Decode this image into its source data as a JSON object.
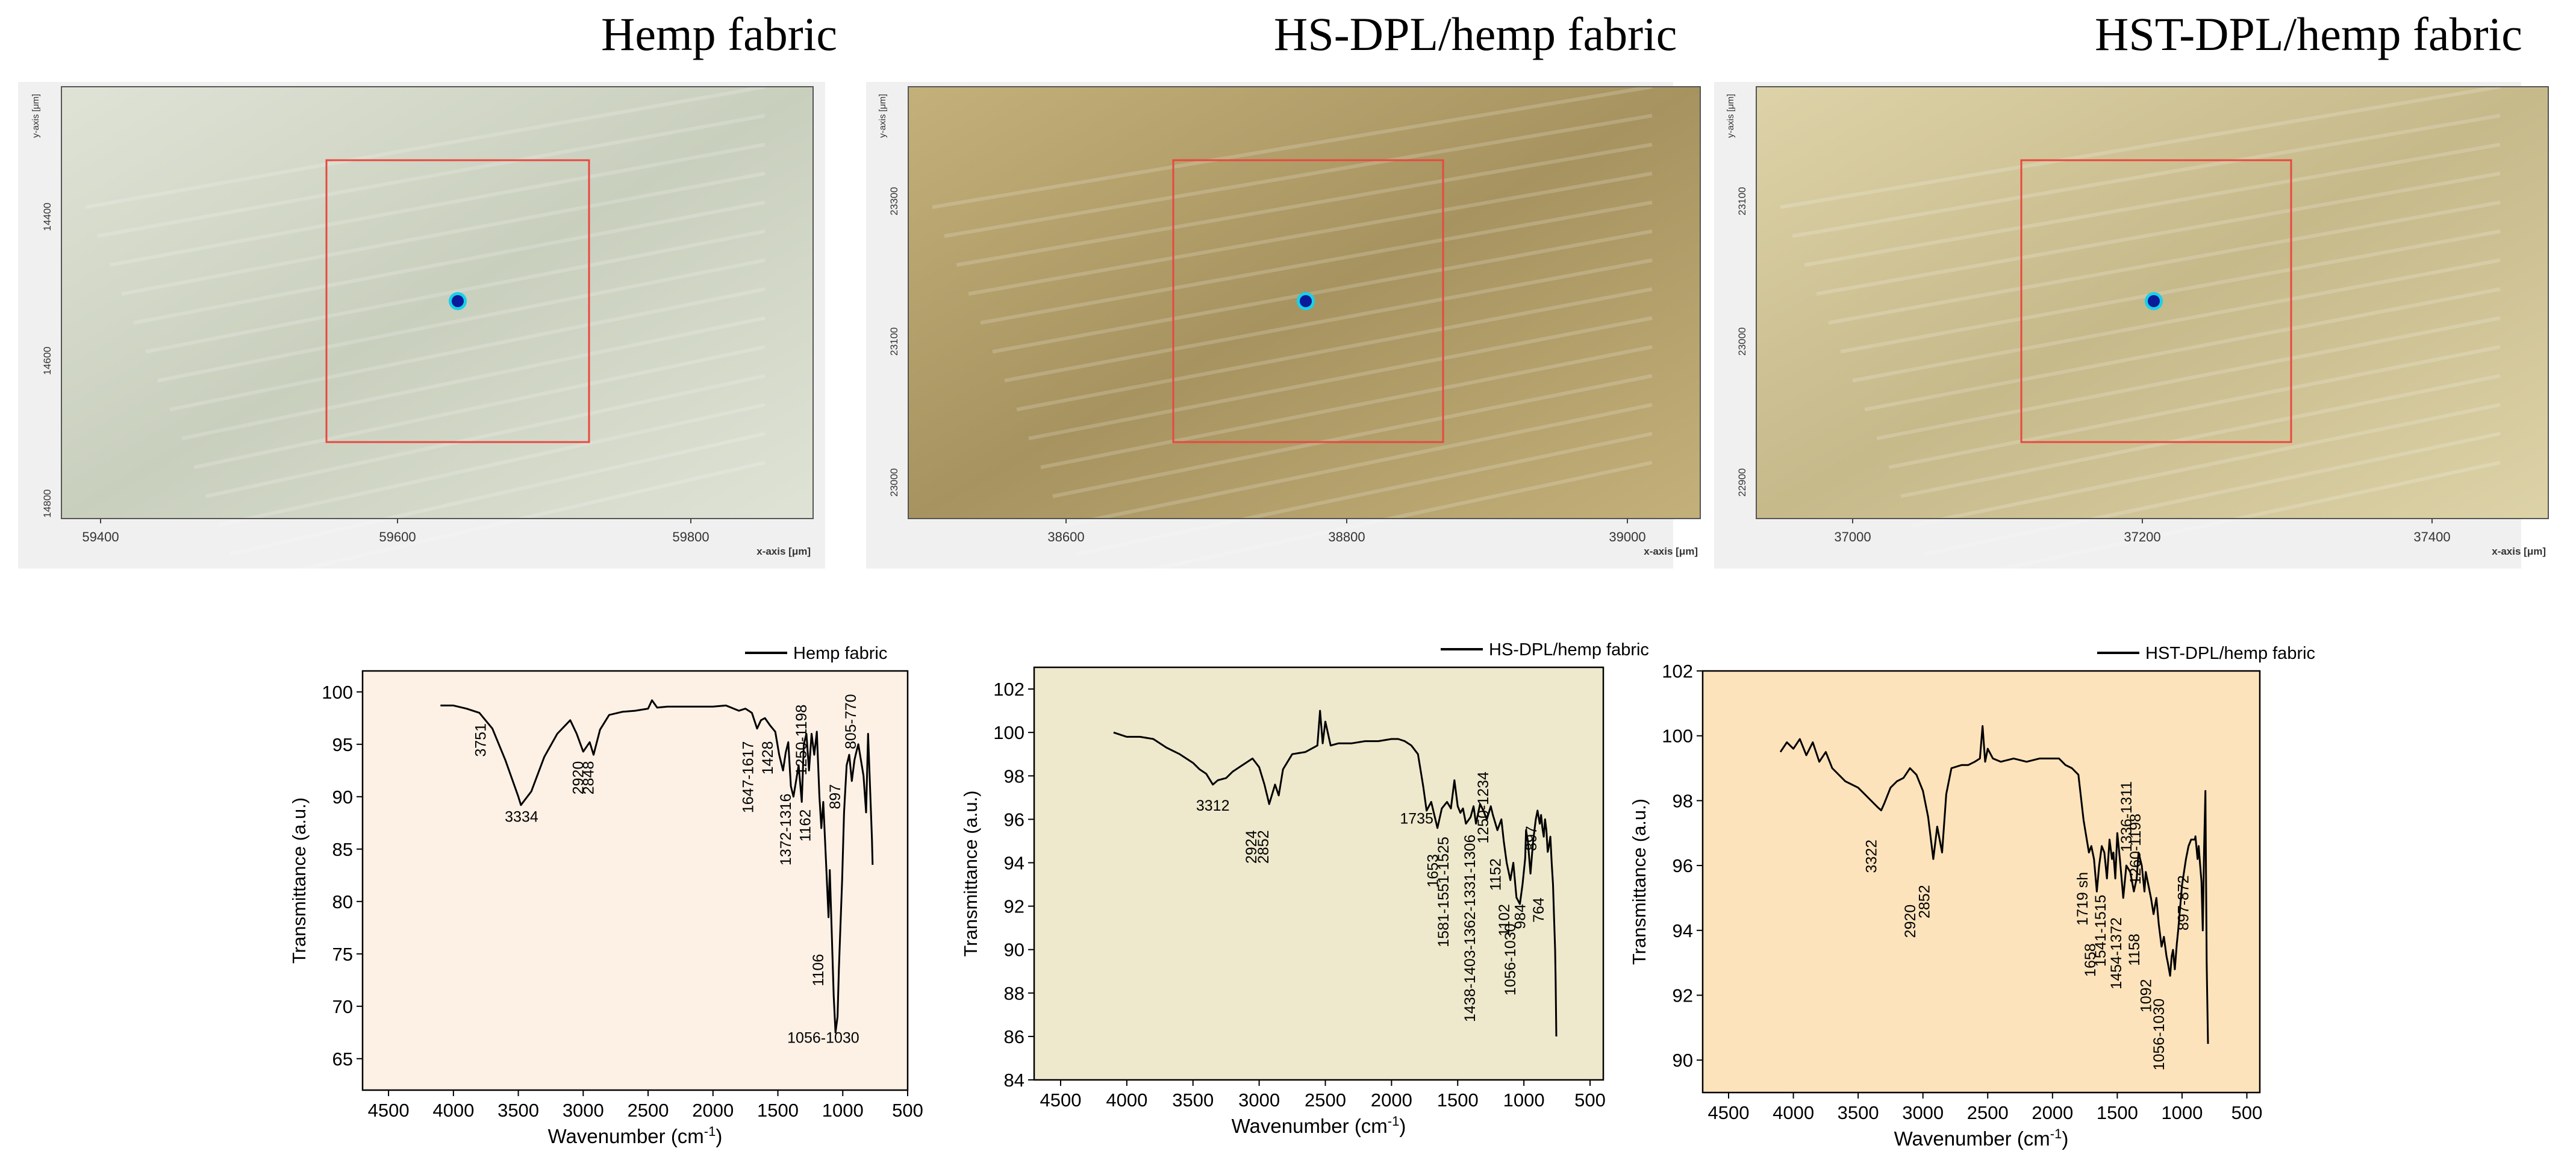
{
  "images": [
    {
      "title": "Hemp fabric",
      "bg": "#c9cfbd",
      "bg2": "#dfe3d6",
      "x_ticks": [
        "59400",
        "59600",
        "59800"
      ],
      "y_ticks": [
        "14400",
        "14600",
        "14800"
      ],
      "x_label": "x-axis [μm]",
      "y_label": "y-axis [μm]"
    },
    {
      "title": "HS-DPL/hemp fabric",
      "bg": "#a7935f",
      "bg2": "#c3b07a",
      "x_ticks": [
        "38600",
        "38800",
        "39000"
      ],
      "y_ticks": [
        "23300",
        "23100",
        "23000"
      ],
      "x_label": "x-axis [μm]",
      "y_label": "y-axis [μm]"
    },
    {
      "title": "HST-DPL/hemp fabric",
      "bg": "#c6b98a",
      "bg2": "#ddd3a8",
      "x_ticks": [
        "37000",
        "37200",
        "37400"
      ],
      "y_ticks": [
        "23100",
        "23000",
        "22900"
      ],
      "x_label": "x-axis [μm]",
      "y_label": "y-axis [μm]"
    }
  ],
  "chart_data": [
    {
      "type": "line",
      "legend": "Hemp fabric",
      "xlabel": "Wavenumber (cm",
      "xlabel_sup": "-1",
      "xlabel_end": ")",
      "ylabel": "Transmittance (a.u.)",
      "xlim": [
        4700,
        500
      ],
      "ylim": [
        62,
        102
      ],
      "xticks": [
        4500,
        4000,
        3500,
        3000,
        2500,
        2000,
        1500,
        1000,
        500
      ],
      "yticks": [
        65,
        70,
        75,
        80,
        85,
        90,
        95,
        100
      ],
      "bg": "#fdf1e6",
      "series": [
        {
          "x": [
            4100,
            4000,
            3900,
            3800,
            3700,
            3600,
            3500,
            3480,
            3400,
            3300,
            3200,
            3100,
            3050,
            3000,
            2950,
            2920,
            2870,
            2800,
            2700,
            2600,
            2500,
            2470,
            2430,
            2350,
            2200,
            2000,
            1900,
            1800,
            1750,
            1700,
            1660,
            1630,
            1600,
            1560,
            1520,
            1490,
            1460,
            1440,
            1420,
            1400,
            1380,
            1360,
            1340,
            1316,
            1300,
            1280,
            1260,
            1240,
            1220,
            1200,
            1180,
            1165,
            1150,
            1130,
            1110,
            1100,
            1090,
            1070,
            1056,
            1040,
            1030,
            1020,
            1005,
            990,
            970,
            950,
            930,
            910,
            897,
            880,
            860,
            840,
            820,
            805,
            790,
            775,
            770
          ],
          "y": [
            98.7,
            98.7,
            98.4,
            98.0,
            96.5,
            93.5,
            90.0,
            89.2,
            90.5,
            93.8,
            96.0,
            97.3,
            96.0,
            94.3,
            95.2,
            94.0,
            96.4,
            97.8,
            98.1,
            98.2,
            98.4,
            99.2,
            98.5,
            98.6,
            98.6,
            98.6,
            98.7,
            98.2,
            98.4,
            98.0,
            96.5,
            97.3,
            97.5,
            96.8,
            96.2,
            94.0,
            92.5,
            94.2,
            95.2,
            91.0,
            90.0,
            91.5,
            93.0,
            89.5,
            95.0,
            96.0,
            92.5,
            96.0,
            94.0,
            96.2,
            90.0,
            87.0,
            89.5,
            84.0,
            78.5,
            83.0,
            79.0,
            71.0,
            67.5,
            69.0,
            73.5,
            77.0,
            82.0,
            88.5,
            93.0,
            94.0,
            91.5,
            93.5,
            94.2,
            95.0,
            93.5,
            92.0,
            88.5,
            96.0,
            91.0,
            86.0,
            83.5
          ]
        }
      ],
      "annotations": [
        "3751",
        "3334",
        "2920",
        "2848",
        "1647-1617",
        "1428",
        "1372-1316",
        "1250-1198",
        "1162",
        "1106",
        "1056-1030",
        "897",
        "805-770"
      ]
    },
    {
      "type": "line",
      "legend": "HS-DPL/hemp fabric",
      "xlabel": "Wavenumber (cm",
      "xlabel_sup": "-1",
      "xlabel_end": ")",
      "ylabel": "Transmittance (a.u.)",
      "xlim": [
        4700,
        400
      ],
      "ylim": [
        84,
        103
      ],
      "xticks": [
        4500,
        4000,
        3500,
        3000,
        2500,
        2000,
        1500,
        1000,
        500
      ],
      "yticks": [
        84,
        86,
        88,
        90,
        92,
        94,
        96,
        98,
        100,
        102
      ],
      "bg": "#eee9cd",
      "series": [
        {
          "x": [
            4100,
            4000,
            3900,
            3800,
            3700,
            3600,
            3500,
            3450,
            3400,
            3350,
            3312,
            3250,
            3200,
            3100,
            3050,
            3000,
            2960,
            2924,
            2880,
            2852,
            2820,
            2750,
            2650,
            2560,
            2540,
            2520,
            2500,
            2460,
            2400,
            2300,
            2200,
            2100,
            2000,
            1950,
            1900,
            1850,
            1800,
            1760,
            1735,
            1700,
            1653,
            1620,
            1581,
            1551,
            1525,
            1500,
            1480,
            1460,
            1438,
            1403,
            1380,
            1362,
            1331,
            1306,
            1280,
            1250,
            1234,
            1200,
            1170,
            1152,
            1130,
            1102,
            1080,
            1056,
            1030,
            1010,
            990,
            984,
            970,
            950,
            930,
            910,
            897,
            880,
            870,
            860,
            850,
            840,
            830,
            820,
            810,
            800,
            790,
            780,
            772,
            764,
            760,
            755
          ],
          "y": [
            100.0,
            99.8,
            99.8,
            99.7,
            99.3,
            99.0,
            98.6,
            98.3,
            98.1,
            97.6,
            97.8,
            97.9,
            98.2,
            98.6,
            98.8,
            98.4,
            97.6,
            96.7,
            97.6,
            97.1,
            98.3,
            99.0,
            99.1,
            99.4,
            101.0,
            99.5,
            100.5,
            99.4,
            99.5,
            99.5,
            99.6,
            99.6,
            99.7,
            99.7,
            99.6,
            99.4,
            99.0,
            97.5,
            96.4,
            96.8,
            95.6,
            96.5,
            96.8,
            96.5,
            97.8,
            96.6,
            96.3,
            96.5,
            95.8,
            96.1,
            96.6,
            95.8,
            96.7,
            96.4,
            96.0,
            96.6,
            96.2,
            95.5,
            96.0,
            95.0,
            94.0,
            93.2,
            94.0,
            92.4,
            92.1,
            93.0,
            94.2,
            95.5,
            95.0,
            93.5,
            95.0,
            96.0,
            96.4,
            95.8,
            96.2,
            95.6,
            95.2,
            96.0,
            95.5,
            94.5,
            94.8,
            95.2,
            94.0,
            93.0,
            91.5,
            90.0,
            88.5,
            86.0
          ]
        }
      ],
      "annotations": [
        "3312",
        "2924",
        "2852",
        "1735",
        "1653",
        "1581-1551-1525",
        "1438-1403-1362-1331-1306",
        "1250-1234",
        "1152",
        "1102",
        "1056-1030",
        "984",
        "897",
        "764"
      ]
    },
    {
      "type": "line",
      "legend": "HST-DPL/hemp fabric",
      "xlabel": "Wavenumber (cm",
      "xlabel_sup": "-1",
      "xlabel_end": ")",
      "ylabel": "Transmittance (a.u.)",
      "xlim": [
        4700,
        400
      ],
      "ylim": [
        89,
        102
      ],
      "xticks": [
        4500,
        4000,
        3500,
        3000,
        2500,
        2000,
        1500,
        1000,
        500
      ],
      "yticks": [
        90,
        92,
        94,
        96,
        98,
        100,
        102
      ],
      "bg": "#fde3bb",
      "series": [
        {
          "x": [
            4100,
            4050,
            4000,
            3950,
            3900,
            3850,
            3800,
            3750,
            3700,
            3650,
            3600,
            3550,
            3500,
            3450,
            3400,
            3350,
            3322,
            3300,
            3250,
            3200,
            3150,
            3100,
            3050,
            3000,
            2960,
            2920,
            2890,
            2852,
            2820,
            2780,
            2700,
            2650,
            2600,
            2560,
            2540,
            2520,
            2500,
            2460,
            2400,
            2300,
            2200,
            2100,
            2000,
            1950,
            1900,
            1850,
            1800,
            1760,
            1719,
            1700,
            1680,
            1658,
            1640,
            1620,
            1600,
            1580,
            1560,
            1541,
            1530,
            1515,
            1500,
            1480,
            1454,
            1430,
            1400,
            1372,
            1350,
            1336,
            1311,
            1290,
            1280,
            1260,
            1240,
            1220,
            1198,
            1180,
            1158,
            1140,
            1120,
            1110,
            1092,
            1080,
            1070,
            1056,
            1040,
            1030,
            1000,
            970,
            950,
            930,
            900,
            897,
            880,
            872,
            860,
            850,
            840,
            830,
            820,
            810,
            800
          ],
          "y": [
            99.5,
            99.8,
            99.6,
            99.9,
            99.4,
            99.8,
            99.2,
            99.5,
            99.0,
            98.8,
            98.6,
            98.5,
            98.4,
            98.2,
            98.0,
            97.8,
            97.7,
            97.9,
            98.4,
            98.6,
            98.7,
            99.0,
            98.8,
            98.3,
            97.5,
            96.2,
            97.2,
            96.4,
            98.2,
            99.0,
            99.1,
            99.1,
            99.2,
            99.3,
            100.3,
            99.2,
            99.6,
            99.3,
            99.2,
            99.3,
            99.2,
            99.3,
            99.3,
            99.3,
            99.1,
            99.0,
            98.8,
            97.4,
            96.4,
            96.6,
            96.2,
            95.2,
            96.0,
            96.6,
            96.4,
            95.6,
            96.8,
            96.2,
            96.4,
            95.6,
            97.0,
            96.2,
            95.0,
            96.0,
            95.8,
            95.2,
            95.6,
            96.4,
            96.0,
            95.2,
            95.8,
            95.4,
            95.0,
            94.5,
            95.0,
            94.2,
            93.5,
            93.8,
            93.2,
            93.0,
            92.6,
            93.2,
            93.4,
            92.8,
            93.6,
            94.0,
            95.4,
            96.2,
            96.6,
            96.8,
            96.8,
            96.9,
            96.2,
            96.6,
            96.0,
            95.5,
            94.0,
            96.5,
            98.3,
            93.0,
            90.5
          ]
        }
      ],
      "annotations": [
        "3322",
        "2920",
        "2852",
        "1719 sh",
        "1658",
        "1541-1515",
        "1454-1372",
        "1336-1311",
        "1260-1198",
        "1158",
        "1092",
        "1056-1030",
        "897-872"
      ]
    }
  ]
}
